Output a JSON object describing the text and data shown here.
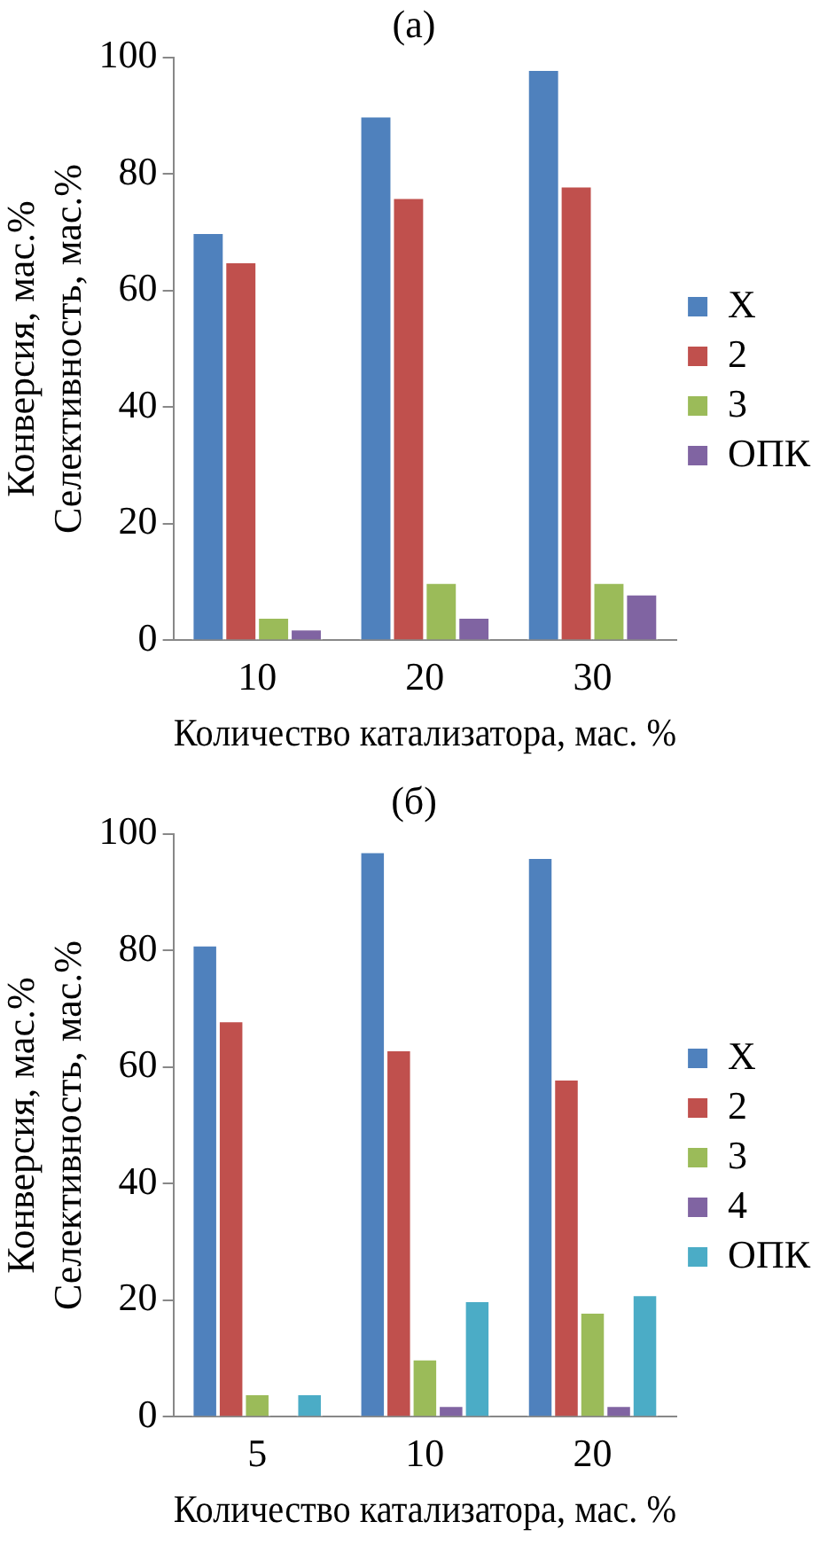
{
  "chart_data": [
    {
      "type": "bar",
      "title": "(a)",
      "xlabel": "Количество катализатора, мас. %",
      "ylabel": "Конверсия, мас.%\nСелективность, мас.%",
      "categories": [
        "10",
        "20",
        "30"
      ],
      "ylim": [
        0,
        100
      ],
      "yticks": [
        0,
        20,
        40,
        60,
        80,
        100
      ],
      "grid": false,
      "legend": "right",
      "series": [
        {
          "name": "X",
          "color": "#4f81bd",
          "values": [
            70,
            90,
            98
          ]
        },
        {
          "name": "2",
          "color": "#c0504d",
          "values": [
            65,
            76,
            78
          ]
        },
        {
          "name": "3",
          "color": "#9bbb59",
          "values": [
            4,
            10,
            10
          ]
        },
        {
          "name": "ОПК",
          "color": "#8064a2",
          "values": [
            2,
            4,
            8
          ]
        }
      ]
    },
    {
      "type": "bar",
      "title": "(б)",
      "xlabel": "Количество катализатора, мас. %",
      "ylabel": "Конверсия, мас.%\nСелективность, мас.%",
      "categories": [
        "5",
        "10",
        "20"
      ],
      "ylim": [
        0,
        100
      ],
      "yticks": [
        0,
        20,
        40,
        60,
        80,
        100
      ],
      "grid": false,
      "legend": "right",
      "series": [
        {
          "name": "X",
          "color": "#4f81bd",
          "values": [
            81,
            97,
            96
          ]
        },
        {
          "name": "2",
          "color": "#c0504d",
          "values": [
            68,
            63,
            58
          ]
        },
        {
          "name": "3",
          "color": "#9bbb59",
          "values": [
            4,
            10,
            18
          ]
        },
        {
          "name": "4",
          "color": "#8064a2",
          "values": [
            0,
            2,
            2
          ]
        },
        {
          "name": "ОПК",
          "color": "#4bacc6",
          "values": [
            4,
            20,
            21
          ]
        }
      ]
    }
  ]
}
